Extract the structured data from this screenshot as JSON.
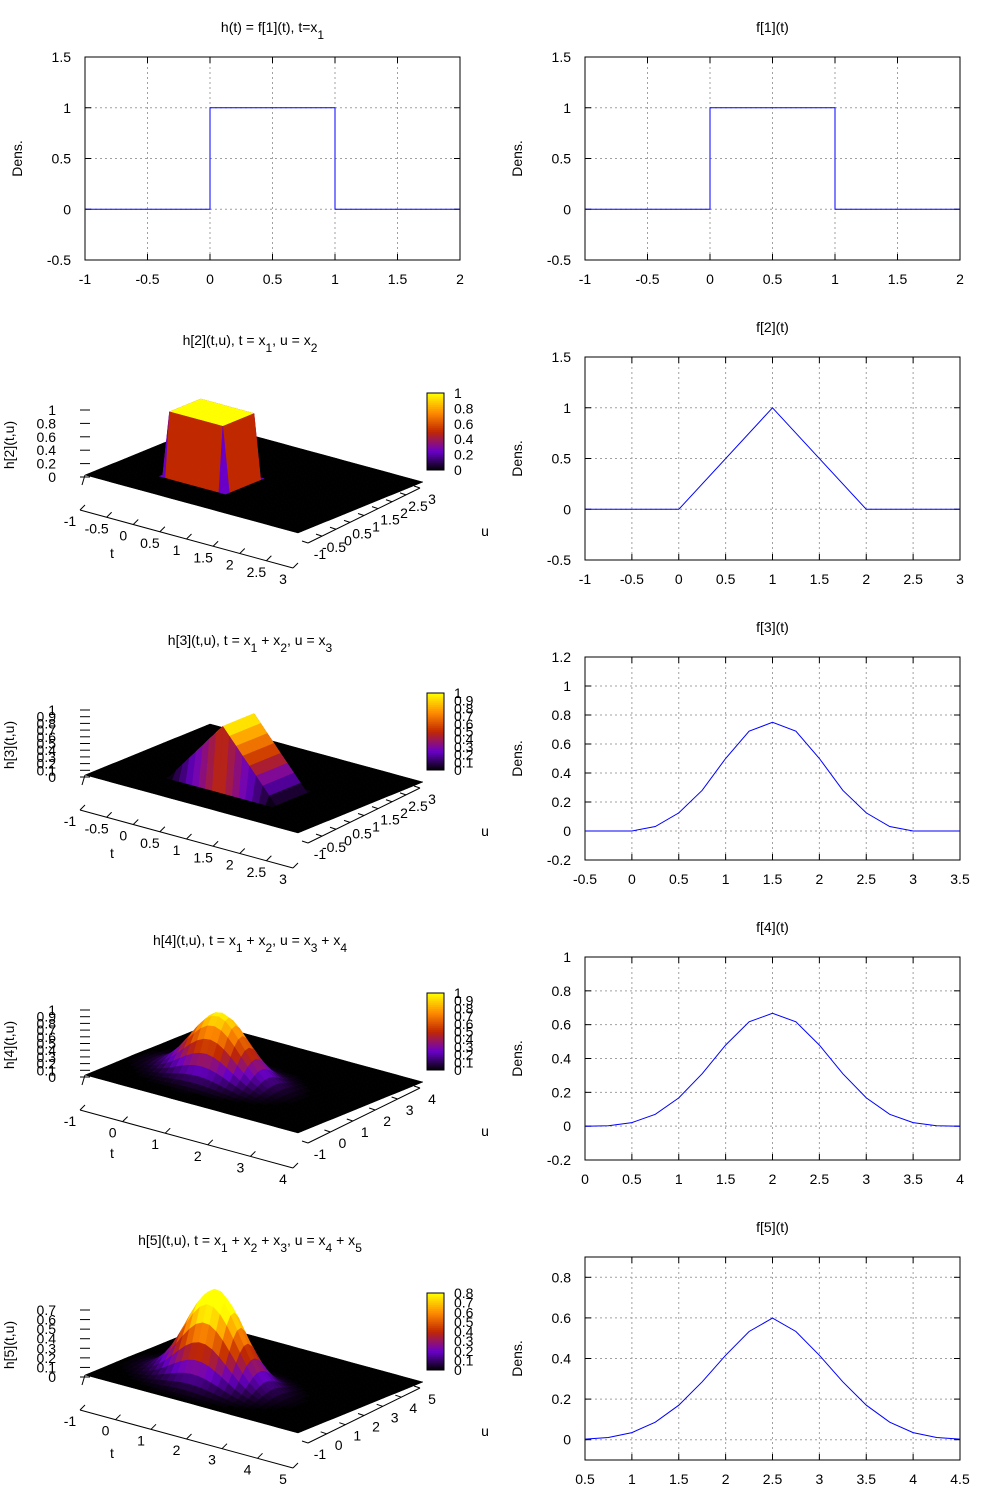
{
  "colors": {
    "line": "#0000ff",
    "grid": "#a0a0a0",
    "surface_base": "#000000",
    "palette": [
      "#000000",
      "#6a00c8",
      "#c02800",
      "#ff8c00",
      "#ffff00"
    ]
  },
  "chart_data": [
    {
      "id": "h1",
      "type": "line",
      "title": {
        "parts": [
          {
            "t": "h(t) = f[1](t), t=x"
          },
          {
            "t": "1",
            "sub": true
          }
        ]
      },
      "ylabel": "Dens.",
      "xlim": [
        -1,
        2
      ],
      "ylim": [
        -0.5,
        1.5
      ],
      "xticks": [
        -1,
        -0.5,
        0,
        0.5,
        1,
        1.5,
        2
      ],
      "xtick_labels": [
        "-1",
        "-0.5",
        "0",
        "0.5",
        "1",
        "1.5",
        "2"
      ],
      "yticks": [
        -0.5,
        0,
        0.5,
        1,
        1.5
      ],
      "ytick_labels": [
        "-0.5",
        "0",
        "0.5",
        "1",
        "1.5"
      ],
      "grid": true,
      "series": [
        {
          "name": "f[1](t)",
          "x": [
            -1,
            0,
            0,
            1,
            1,
            2
          ],
          "y": [
            0,
            0,
            1,
            1,
            0,
            0
          ]
        }
      ]
    },
    {
      "id": "f1",
      "type": "line",
      "title": {
        "parts": [
          {
            "t": "f[1](t)"
          }
        ]
      },
      "ylabel": "Dens.",
      "xlim": [
        -1,
        2
      ],
      "ylim": [
        -0.5,
        1.5
      ],
      "xticks": [
        -1,
        -0.5,
        0,
        0.5,
        1,
        1.5,
        2
      ],
      "xtick_labels": [
        "-1",
        "-0.5",
        "0",
        "0.5",
        "1",
        "1.5",
        "2"
      ],
      "yticks": [
        -0.5,
        0,
        0.5,
        1,
        1.5
      ],
      "ytick_labels": [
        "-0.5",
        "0",
        "0.5",
        "1",
        "1.5"
      ],
      "grid": true,
      "series": [
        {
          "name": "f[1](t)",
          "x": [
            -1,
            0,
            0,
            1,
            1,
            2
          ],
          "y": [
            0,
            0,
            1,
            1,
            0,
            0
          ]
        }
      ]
    },
    {
      "id": "h2",
      "type": "surface",
      "title": {
        "parts": [
          {
            "t": "h[2](t,u), t = x"
          },
          {
            "t": "1",
            "sub": true
          },
          {
            "t": ", u = x"
          },
          {
            "t": "2",
            "sub": true
          }
        ]
      },
      "zlabel": "h[2](t,u)",
      "xlabel": "t",
      "ylabel": "u",
      "surface": {
        "kind": "box",
        "tmin": -1,
        "tmax": 3,
        "umin": -1,
        "umax": 3
      },
      "zmax": 1,
      "xtick_labels": [
        "-1",
        "-0.5",
        "0",
        "0.5",
        "1",
        "1.5",
        "2",
        "2.5",
        "3"
      ],
      "ytick_labels": [
        "-1",
        "-0.5",
        "0",
        "0.5",
        "1",
        "1.5",
        "2",
        "2.5",
        "3"
      ],
      "ztick_labels": [
        "0",
        "0.2",
        "0.4",
        "0.6",
        "0.8",
        "1"
      ],
      "colorbar_labels": [
        "0",
        "0.2",
        "0.4",
        "0.6",
        "0.8",
        "1"
      ]
    },
    {
      "id": "f2",
      "type": "line",
      "title": {
        "parts": [
          {
            "t": "f[2](t)"
          }
        ]
      },
      "ylabel": "Dens.",
      "xlim": [
        -1,
        3
      ],
      "ylim": [
        -0.5,
        1.5
      ],
      "xticks": [
        -1,
        -0.5,
        0,
        0.5,
        1,
        1.5,
        2,
        2.5,
        3
      ],
      "xtick_labels": [
        "-1",
        "-0.5",
        "0",
        "0.5",
        "1",
        "1.5",
        "2",
        "2.5",
        "3"
      ],
      "yticks": [
        -0.5,
        0,
        0.5,
        1,
        1.5
      ],
      "ytick_labels": [
        "-0.5",
        "0",
        "0.5",
        "1",
        "1.5"
      ],
      "grid": true,
      "series": [
        {
          "name": "f[2](t)",
          "x": [
            -1,
            0,
            1,
            2,
            3
          ],
          "y": [
            0,
            0,
            1,
            0,
            0
          ]
        }
      ]
    },
    {
      "id": "h3",
      "type": "surface",
      "title": {
        "parts": [
          {
            "t": "h[3](t,u), t = x"
          },
          {
            "t": "1",
            "sub": true
          },
          {
            "t": " + x"
          },
          {
            "t": "2",
            "sub": true
          },
          {
            "t": ", u = x"
          },
          {
            "t": "3",
            "sub": true
          }
        ]
      },
      "zlabel": "h[3](t,u)",
      "xlabel": "t",
      "ylabel": "u",
      "surface": {
        "kind": "ridge",
        "tmin": -1,
        "tmax": 3,
        "umin": -1,
        "umax": 3
      },
      "zmax": 1,
      "xtick_labels": [
        "-1",
        "-0.5",
        "0",
        "0.5",
        "1",
        "1.5",
        "2",
        "2.5",
        "3"
      ],
      "ytick_labels": [
        "-1",
        "-0.5",
        "0",
        "0.5",
        "1",
        "1.5",
        "2",
        "2.5",
        "3"
      ],
      "ztick_labels": [
        "0",
        "0.1",
        "0.2",
        "0.3",
        "0.4",
        "0.5",
        "0.6",
        "0.7",
        "0.8",
        "0.9",
        "1"
      ],
      "colorbar_labels": [
        "0",
        "0.1",
        "0.2",
        "0.3",
        "0.4",
        "0.5",
        "0.6",
        "0.7",
        "0.8",
        "0.9",
        "1"
      ]
    },
    {
      "id": "f3",
      "type": "line",
      "title": {
        "parts": [
          {
            "t": "f[3](t)"
          }
        ]
      },
      "ylabel": "Dens.",
      "xlim": [
        -0.5,
        3.5
      ],
      "ylim": [
        -0.2,
        1.2
      ],
      "xticks": [
        -0.5,
        0,
        0.5,
        1,
        1.5,
        2,
        2.5,
        3,
        3.5
      ],
      "xtick_labels": [
        "-0.5",
        "0",
        "0.5",
        "1",
        "1.5",
        "2",
        "2.5",
        "3",
        "3.5"
      ],
      "yticks": [
        -0.2,
        0,
        0.2,
        0.4,
        0.6,
        0.8,
        1,
        1.2
      ],
      "ytick_labels": [
        "-0.2",
        "0",
        "0.2",
        "0.4",
        "0.6",
        "0.8",
        "1",
        "1.2"
      ],
      "grid": true,
      "series": [
        {
          "name": "f[3](t)",
          "x": [
            -0.5,
            0,
            0.25,
            0.5,
            0.75,
            1,
            1.25,
            1.5,
            1.75,
            2,
            2.25,
            2.5,
            2.75,
            3,
            3.5
          ],
          "y": [
            0,
            0,
            0.031,
            0.125,
            0.281,
            0.5,
            0.688,
            0.75,
            0.688,
            0.5,
            0.281,
            0.125,
            0.031,
            0,
            0
          ]
        }
      ]
    },
    {
      "id": "h4",
      "type": "surface",
      "title": {
        "parts": [
          {
            "t": "h[4](t,u), t = x"
          },
          {
            "t": "1",
            "sub": true
          },
          {
            "t": " + x"
          },
          {
            "t": "2",
            "sub": true
          },
          {
            "t": ", u = x"
          },
          {
            "t": "3",
            "sub": true
          },
          {
            "t": " + x"
          },
          {
            "t": "4",
            "sub": true
          }
        ]
      },
      "zlabel": "h[4](t,u)",
      "xlabel": "t",
      "ylabel": "u",
      "surface": {
        "kind": "pyramid",
        "tmin": -1,
        "tmax": 4,
        "umin": -1,
        "umax": 4,
        "center": [
          1,
          1
        ],
        "spread": 1
      },
      "zmax": 1,
      "xtick_labels": [
        "-1",
        "0",
        "1",
        "2",
        "3",
        "4"
      ],
      "ytick_labels": [
        "-1",
        "0",
        "1",
        "2",
        "3",
        "4"
      ],
      "ztick_labels": [
        "0",
        "0.1",
        "0.2",
        "0.3",
        "0.4",
        "0.5",
        "0.6",
        "0.7",
        "0.8",
        "0.9",
        "1"
      ],
      "colorbar_labels": [
        "0",
        "0.1",
        "0.2",
        "0.3",
        "0.4",
        "0.5",
        "0.6",
        "0.7",
        "0.8",
        "0.9",
        "1"
      ]
    },
    {
      "id": "f4",
      "type": "line",
      "title": {
        "parts": [
          {
            "t": "f[4](t)"
          }
        ]
      },
      "ylabel": "Dens.",
      "xlim": [
        0,
        4
      ],
      "ylim": [
        -0.2,
        1
      ],
      "xticks": [
        0,
        0.5,
        1,
        1.5,
        2,
        2.5,
        3,
        3.5,
        4
      ],
      "xtick_labels": [
        "0",
        "0.5",
        "1",
        "1.5",
        "2",
        "2.5",
        "3",
        "3.5",
        "4"
      ],
      "yticks": [
        -0.2,
        0,
        0.2,
        0.4,
        0.6,
        0.8,
        1
      ],
      "ytick_labels": [
        "-0.2",
        "0",
        "0.2",
        "0.4",
        "0.6",
        "0.8",
        "1"
      ],
      "grid": true,
      "series": [
        {
          "name": "f[4](t)",
          "x": [
            0,
            0.25,
            0.5,
            0.75,
            1,
            1.25,
            1.5,
            1.75,
            2,
            2.25,
            2.5,
            2.75,
            3,
            3.25,
            3.5,
            3.75,
            4
          ],
          "y": [
            0,
            0.003,
            0.021,
            0.07,
            0.167,
            0.31,
            0.479,
            0.617,
            0.667,
            0.617,
            0.479,
            0.31,
            0.167,
            0.07,
            0.021,
            0.003,
            0
          ]
        }
      ]
    },
    {
      "id": "h5",
      "type": "surface",
      "title": {
        "parts": [
          {
            "t": "h[5](t,u), t = x"
          },
          {
            "t": "1",
            "sub": true
          },
          {
            "t": " + x"
          },
          {
            "t": "2",
            "sub": true
          },
          {
            "t": " + x"
          },
          {
            "t": "3",
            "sub": true
          },
          {
            "t": ", u = x"
          },
          {
            "t": "4",
            "sub": true
          },
          {
            "t": "  + x"
          },
          {
            "t": "5",
            "sub": true
          }
        ]
      },
      "zlabel": "h[5](t,u)",
      "xlabel": "t",
      "ylabel": "u",
      "surface": {
        "kind": "pyramid",
        "tmin": -1,
        "tmax": 5,
        "umin": -1,
        "umax": 5,
        "center": [
          1.5,
          1
        ],
        "spread": 1.2
      },
      "zmax": 0.7,
      "xtick_labels": [
        "-1",
        "0",
        "1",
        "2",
        "3",
        "4",
        "5"
      ],
      "ytick_labels": [
        "-1",
        "0",
        "1",
        "2",
        "3",
        "4",
        "5"
      ],
      "ztick_labels": [
        "0",
        "0.1",
        "0.2",
        "0.3",
        "0.4",
        "0.5",
        "0.6",
        "0.7"
      ],
      "colorbar_labels": [
        "0",
        "0.1",
        "0.2",
        "0.3",
        "0.4",
        "0.5",
        "0.6",
        "0.7",
        "0.8"
      ]
    },
    {
      "id": "f5",
      "type": "line",
      "title": {
        "parts": [
          {
            "t": "f[5](t)"
          }
        ]
      },
      "ylabel": "Dens.",
      "xlim": [
        0.5,
        4.5
      ],
      "ylim": [
        -0.1,
        0.9
      ],
      "xticks": [
        0.5,
        1,
        1.5,
        2,
        2.5,
        3,
        3.5,
        4,
        4.5
      ],
      "xtick_labels": [
        "0.5",
        "1",
        "1.5",
        "2",
        "2.5",
        "3",
        "3.5",
        "4",
        "4.5"
      ],
      "yticks": [
        0,
        0.2,
        0.4,
        0.6,
        0.8
      ],
      "ytick_labels": [
        "0",
        "0.2",
        "0.4",
        "0.6",
        "0.8"
      ],
      "grid": true,
      "series": [
        {
          "name": "f[5](t)",
          "x": [
            0.5,
            0.75,
            1,
            1.25,
            1.5,
            1.75,
            2,
            2.25,
            2.5,
            2.75,
            3,
            3.25,
            3.5,
            3.75,
            4,
            4.25,
            4.5
          ],
          "y": [
            0.003,
            0.011,
            0.035,
            0.086,
            0.17,
            0.285,
            0.416,
            0.533,
            0.599,
            0.533,
            0.416,
            0.285,
            0.17,
            0.086,
            0.035,
            0.011,
            0.003
          ]
        }
      ]
    }
  ]
}
